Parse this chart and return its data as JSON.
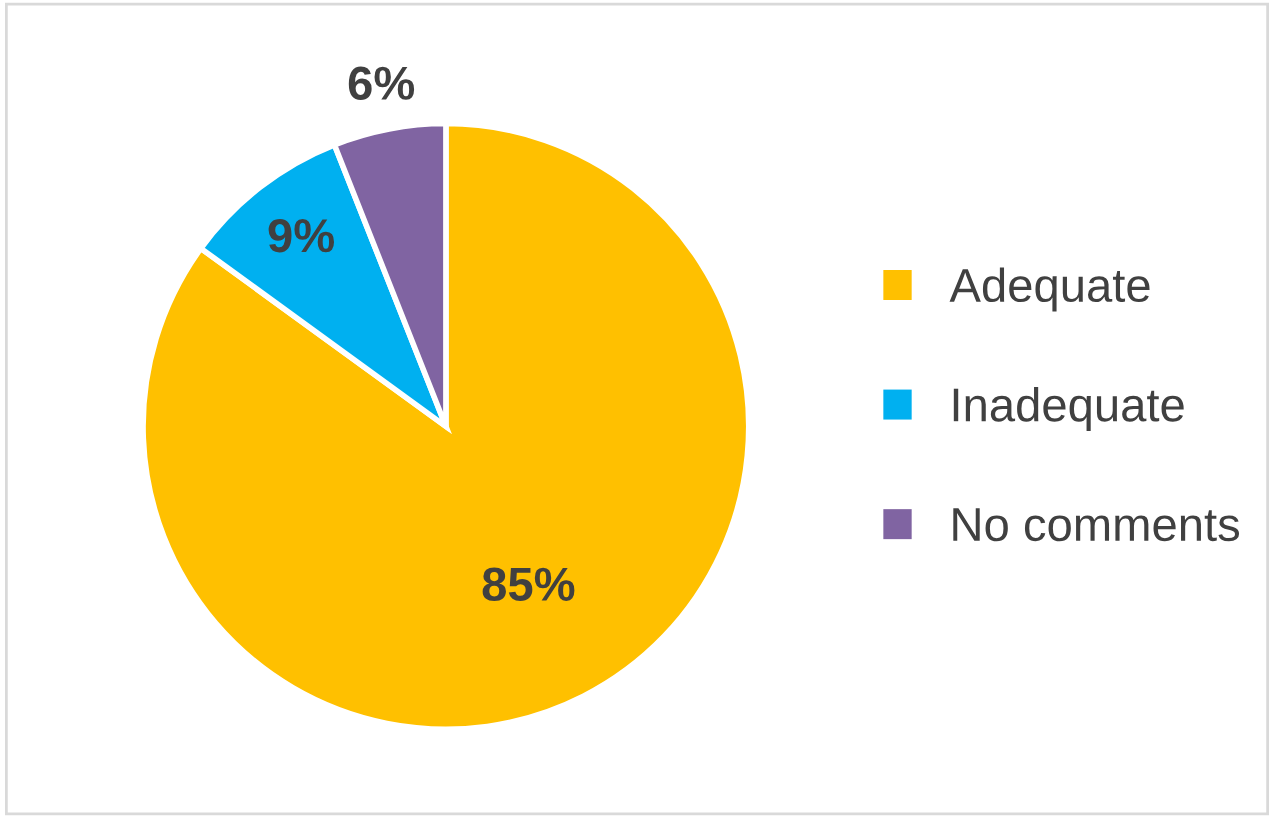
{
  "chart_data": {
    "type": "pie",
    "categories": [
      "Adequate",
      "Inadequate",
      "No comments"
    ],
    "values": [
      85,
      9,
      6
    ],
    "colors": [
      "#ffc000",
      "#00b0f0",
      "#8064a2"
    ],
    "value_labels": [
      "85%",
      "9%",
      "6%"
    ],
    "legend": "right"
  }
}
